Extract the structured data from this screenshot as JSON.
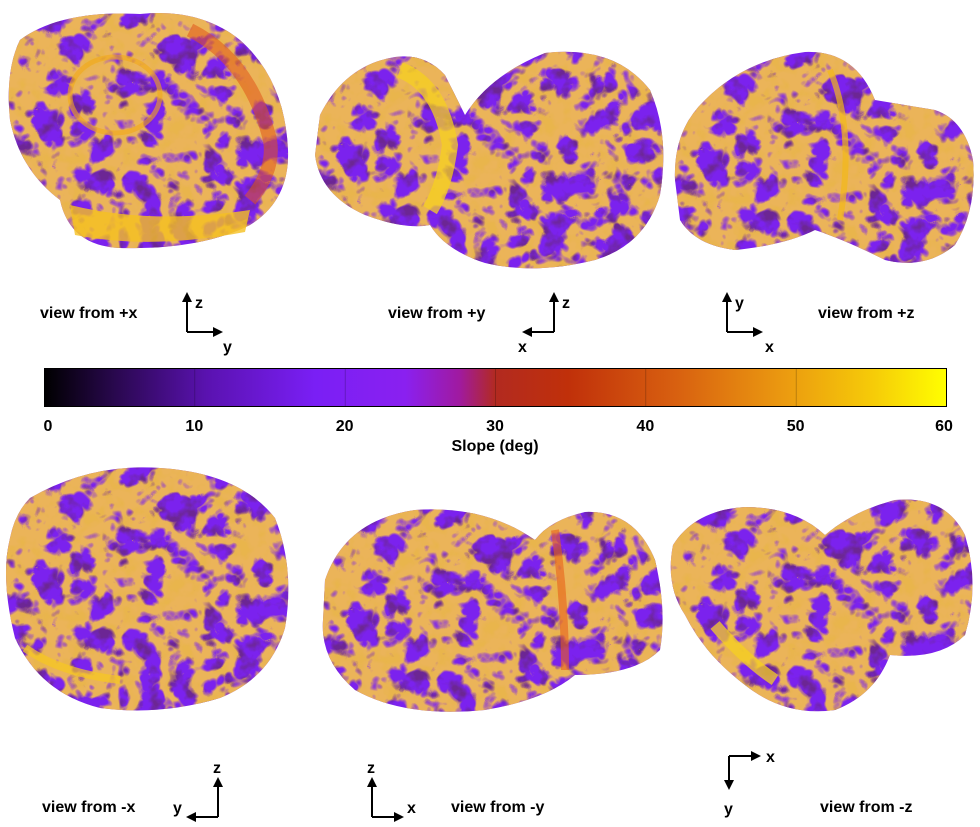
{
  "colorbar": {
    "title": "Slope (deg)",
    "min": 0,
    "max": 60,
    "ticks": [
      "0",
      "10",
      "20",
      "30",
      "40",
      "50",
      "60"
    ],
    "colors": [
      "#000000",
      "#3d0a78",
      "#7a1ff0",
      "#9b1be0",
      "#b81c2a",
      "#e06a10",
      "#ffff00"
    ]
  },
  "views": [
    {
      "label": "view from +x",
      "axis_up": "z",
      "axis_side": "y"
    },
    {
      "label": "view from +y",
      "axis_up": "z",
      "axis_side": "x"
    },
    {
      "label": "view from +z",
      "axis_up": "y",
      "axis_side": "x"
    },
    {
      "label": "view from -x",
      "axis_up": "z",
      "axis_side": "y"
    },
    {
      "label": "view from -y",
      "axis_up": "z",
      "axis_side": "x"
    },
    {
      "label": "view from -z",
      "axis_down": "y",
      "axis_side": "x"
    }
  ]
}
